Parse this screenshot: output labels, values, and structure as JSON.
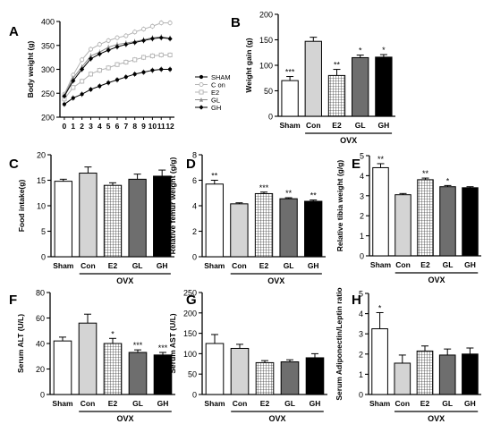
{
  "chart_data": [
    {
      "type": "line",
      "panel": "A",
      "xlabel": "",
      "ylabel": "Body weight (g)",
      "ylim": [
        200,
        400
      ],
      "yticks": [
        200,
        250,
        300,
        350,
        400
      ],
      "x": [
        0,
        1,
        2,
        3,
        4,
        5,
        6,
        7,
        8,
        9,
        10,
        11,
        12
      ],
      "xticks": [
        "0",
        "1",
        "2",
        "3",
        "4",
        "5",
        "6",
        "7",
        "8",
        "9",
        "10",
        "11",
        "12"
      ],
      "legend_position": "right",
      "series": [
        {
          "name": "SHAM",
          "marker": "circle",
          "color": "#000000",
          "values": [
            227,
            240,
            248,
            258,
            265,
            272,
            278,
            284,
            290,
            294,
            298,
            300,
            300
          ]
        },
        {
          "name": "C on",
          "marker": "circle-open",
          "color": "#b3b3b3",
          "values": [
            248,
            288,
            320,
            342,
            352,
            360,
            366,
            370,
            378,
            384,
            390,
            397,
            397
          ]
        },
        {
          "name": "E2",
          "marker": "square-open",
          "color": "#b3b3b3",
          "values": [
            238,
            262,
            275,
            290,
            298,
            303,
            310,
            315,
            320,
            325,
            328,
            330,
            330
          ]
        },
        {
          "name": "GL",
          "marker": "triangle",
          "color": "#8c8c8c",
          "values": [
            245,
            282,
            305,
            328,
            336,
            346,
            352,
            355,
            358,
            362,
            366,
            368,
            365
          ]
        },
        {
          "name": "GH",
          "marker": "diamond",
          "color": "#000000",
          "values": [
            244,
            276,
            300,
            322,
            332,
            340,
            347,
            352,
            356,
            360,
            364,
            366,
            364
          ]
        }
      ]
    },
    {
      "type": "bar",
      "panel": "B",
      "ylabel": "Weight gain (g)",
      "ylim": [
        0,
        200
      ],
      "yticks": [
        0,
        50,
        100,
        150,
        200
      ],
      "categories": [
        "Sham",
        "Con",
        "E2",
        "GL",
        "GH"
      ],
      "values": [
        70,
        147,
        80,
        115,
        116
      ],
      "errors": [
        8,
        8,
        12,
        5,
        5
      ],
      "annotations": [
        "***",
        "",
        "**",
        "*",
        "*"
      ],
      "group_label": "OVX"
    },
    {
      "type": "bar",
      "panel": "C",
      "ylabel": "Food intake(g)",
      "ylim": [
        0,
        20
      ],
      "yticks": [
        0,
        5,
        10,
        15,
        20
      ],
      "categories": [
        "Sham",
        "Con",
        "E2",
        "GL",
        "GH"
      ],
      "values": [
        14.8,
        16.4,
        14.0,
        15.2,
        15.8
      ],
      "errors": [
        0.4,
        1.2,
        0.5,
        1.0,
        1.2
      ],
      "annotations": [
        "",
        "",
        "",
        "",
        ""
      ],
      "group_label": "OVX"
    },
    {
      "type": "bar",
      "panel": "D",
      "ylabel": "Relative femur weight (g/g)",
      "ylim": [
        0,
        8
      ],
      "yticks": [
        0,
        2,
        4,
        6,
        8
      ],
      "categories": [
        "Sham",
        "Con",
        "E2",
        "GL",
        "GH"
      ],
      "values": [
        5.7,
        4.15,
        4.95,
        4.55,
        4.35
      ],
      "errors": [
        0.3,
        0.08,
        0.12,
        0.08,
        0.1
      ],
      "annotations": [
        "**",
        "",
        "***",
        "**",
        "**"
      ],
      "group_label": "OVX"
    },
    {
      "type": "bar",
      "panel": "E",
      "ylabel": "Relative tibia weight (g/g)",
      "ylim": [
        0,
        5
      ],
      "yticks": [
        0,
        1,
        2,
        3,
        4,
        5
      ],
      "categories": [
        "Sham",
        "Con",
        "E2",
        "GL",
        "GH"
      ],
      "values": [
        4.4,
        3.05,
        3.8,
        3.45,
        3.4
      ],
      "errors": [
        0.2,
        0.06,
        0.08,
        0.06,
        0.05
      ],
      "annotations": [
        "**",
        "",
        "**",
        "*",
        ""
      ],
      "group_label": "OVX"
    },
    {
      "type": "bar",
      "panel": "F",
      "ylabel": "Serum ALT (U/L)",
      "ylim": [
        0,
        80
      ],
      "yticks": [
        0,
        20,
        40,
        60,
        80
      ],
      "categories": [
        "Sham",
        "Con",
        "E2",
        "GL",
        "GH"
      ],
      "values": [
        42,
        56,
        40,
        33,
        31
      ],
      "errors": [
        3,
        7,
        4,
        2,
        2
      ],
      "annotations": [
        "",
        "",
        "*",
        "***",
        "***"
      ],
      "group_label": "OVX"
    },
    {
      "type": "bar",
      "panel": "G",
      "ylabel": "Serum AST (U/L)",
      "ylim": [
        0,
        250
      ],
      "yticks": [
        0,
        50,
        100,
        150,
        200,
        250
      ],
      "categories": [
        "Sham",
        "Con",
        "E2",
        "GL",
        "GH"
      ],
      "values": [
        125,
        113,
        78,
        80,
        90
      ],
      "errors": [
        22,
        10,
        5,
        5,
        10
      ],
      "annotations": [
        "",
        "",
        "",
        "",
        ""
      ],
      "group_label": "OVX"
    },
    {
      "type": "bar",
      "panel": "H",
      "ylabel": "Serum Adiponectin/Leptin ratio",
      "ylim": [
        0,
        5
      ],
      "yticks": [
        0,
        1,
        2,
        3,
        4,
        5
      ],
      "categories": [
        "Sham",
        "Con",
        "E2",
        "GL",
        "GH"
      ],
      "values": [
        3.25,
        1.55,
        2.15,
        1.95,
        2.0
      ],
      "errors": [
        0.8,
        0.4,
        0.25,
        0.3,
        0.3
      ],
      "annotations": [
        "*",
        "",
        "",
        "",
        ""
      ],
      "group_label": "OVX"
    }
  ],
  "bar_styles": [
    {
      "fill": "#ffffff",
      "pattern": "none"
    },
    {
      "fill": "#d4d4d4",
      "pattern": "none"
    },
    {
      "fill": "#ffffff",
      "pattern": "grid"
    },
    {
      "fill": "#6e6e6e",
      "pattern": "none"
    },
    {
      "fill": "#000000",
      "pattern": "none"
    }
  ]
}
